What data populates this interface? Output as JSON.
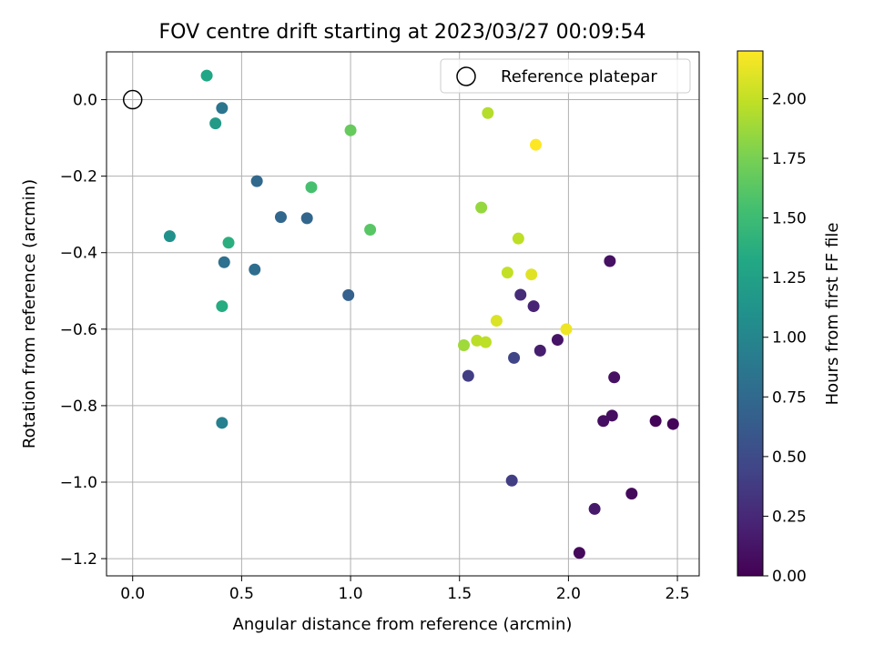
{
  "chart_data": {
    "type": "scatter",
    "title": "FOV centre drift starting at 2023/03/27 00:09:54",
    "xlabel": "Angular distance from reference (arcmin)",
    "ylabel": "Rotation from reference (arcmin)",
    "colorbar_label": "Hours from first FF file",
    "xlim": [
      -0.12,
      2.6
    ],
    "ylim": [
      -1.245,
      0.125
    ],
    "x_ticks": [
      0.0,
      0.5,
      1.0,
      1.5,
      2.0,
      2.5
    ],
    "x_tick_labels": [
      "0.0",
      "0.5",
      "1.0",
      "1.5",
      "2.0",
      "2.5"
    ],
    "y_ticks": [
      0.0,
      -0.2,
      -0.4,
      -0.6,
      -0.8,
      -1.0,
      -1.2
    ],
    "y_tick_labels": [
      "0.0",
      "−0.2",
      "−0.4",
      "−0.6",
      "−0.8",
      "−1.0",
      "−1.2"
    ],
    "colorbar_range": [
      0.0,
      2.2
    ],
    "colorbar_ticks": [
      0.0,
      0.25,
      0.5,
      0.75,
      1.0,
      1.25,
      1.5,
      1.75,
      2.0
    ],
    "colorbar_tick_labels": [
      "0.00",
      "0.25",
      "0.50",
      "0.75",
      "1.00",
      "1.25",
      "1.50",
      "1.75",
      "2.00"
    ],
    "colormap": "viridis",
    "grid": true,
    "legend_position": "top-right",
    "reference": {
      "label": "Reference platepar",
      "x": 0.0,
      "y": 0.0
    },
    "points": [
      {
        "x": 2.05,
        "y": -1.185,
        "hours": 0.05
      },
      {
        "x": 2.29,
        "y": -1.03,
        "hours": 0.05
      },
      {
        "x": 2.12,
        "y": -1.07,
        "hours": 0.15
      },
      {
        "x": 2.48,
        "y": -0.848,
        "hours": 0.02
      },
      {
        "x": 2.4,
        "y": -0.84,
        "hours": 0.02
      },
      {
        "x": 2.16,
        "y": -0.84,
        "hours": 0.08
      },
      {
        "x": 2.2,
        "y": -0.826,
        "hours": 0.08
      },
      {
        "x": 2.21,
        "y": -0.726,
        "hours": 0.1
      },
      {
        "x": 2.19,
        "y": -0.422,
        "hours": 0.1
      },
      {
        "x": 1.95,
        "y": -0.628,
        "hours": 0.12
      },
      {
        "x": 1.87,
        "y": -0.656,
        "hours": 0.18
      },
      {
        "x": 1.84,
        "y": -0.54,
        "hours": 0.22
      },
      {
        "x": 1.78,
        "y": -0.51,
        "hours": 0.27
      },
      {
        "x": 1.74,
        "y": -0.996,
        "hours": 0.4
      },
      {
        "x": 1.75,
        "y": -0.675,
        "hours": 0.45
      },
      {
        "x": 1.54,
        "y": -0.722,
        "hours": 0.4
      },
      {
        "x": 0.99,
        "y": -0.511,
        "hours": 0.68
      },
      {
        "x": 0.8,
        "y": -0.31,
        "hours": 0.72
      },
      {
        "x": 0.68,
        "y": -0.307,
        "hours": 0.73
      },
      {
        "x": 0.57,
        "y": -0.213,
        "hours": 0.75
      },
      {
        "x": 0.56,
        "y": -0.444,
        "hours": 0.78
      },
      {
        "x": 0.42,
        "y": -0.425,
        "hours": 0.82
      },
      {
        "x": 0.41,
        "y": -0.022,
        "hours": 0.85
      },
      {
        "x": 0.41,
        "y": -0.845,
        "hours": 0.95
      },
      {
        "x": 0.17,
        "y": -0.357,
        "hours": 1.1
      },
      {
        "x": 0.38,
        "y": -0.062,
        "hours": 1.2
      },
      {
        "x": 0.34,
        "y": 0.063,
        "hours": 1.3
      },
      {
        "x": 0.41,
        "y": -0.54,
        "hours": 1.35
      },
      {
        "x": 0.44,
        "y": -0.374,
        "hours": 1.38
      },
      {
        "x": 0.82,
        "y": -0.229,
        "hours": 1.55
      },
      {
        "x": 1.09,
        "y": -0.34,
        "hours": 1.62
      },
      {
        "x": 1.0,
        "y": -0.08,
        "hours": 1.68
      },
      {
        "x": 1.6,
        "y": -0.282,
        "hours": 1.85
      },
      {
        "x": 1.52,
        "y": -0.642,
        "hours": 1.88
      },
      {
        "x": 1.63,
        "y": -0.035,
        "hours": 1.95
      },
      {
        "x": 1.58,
        "y": -0.63,
        "hours": 1.97
      },
      {
        "x": 1.62,
        "y": -0.634,
        "hours": 1.98
      },
      {
        "x": 1.77,
        "y": -0.363,
        "hours": 1.98
      },
      {
        "x": 1.72,
        "y": -0.452,
        "hours": 2.0
      },
      {
        "x": 1.67,
        "y": -0.578,
        "hours": 2.08
      },
      {
        "x": 1.83,
        "y": -0.457,
        "hours": 2.1
      },
      {
        "x": 1.99,
        "y": -0.6,
        "hours": 2.15
      },
      {
        "x": 1.85,
        "y": -0.118,
        "hours": 2.2
      }
    ]
  }
}
